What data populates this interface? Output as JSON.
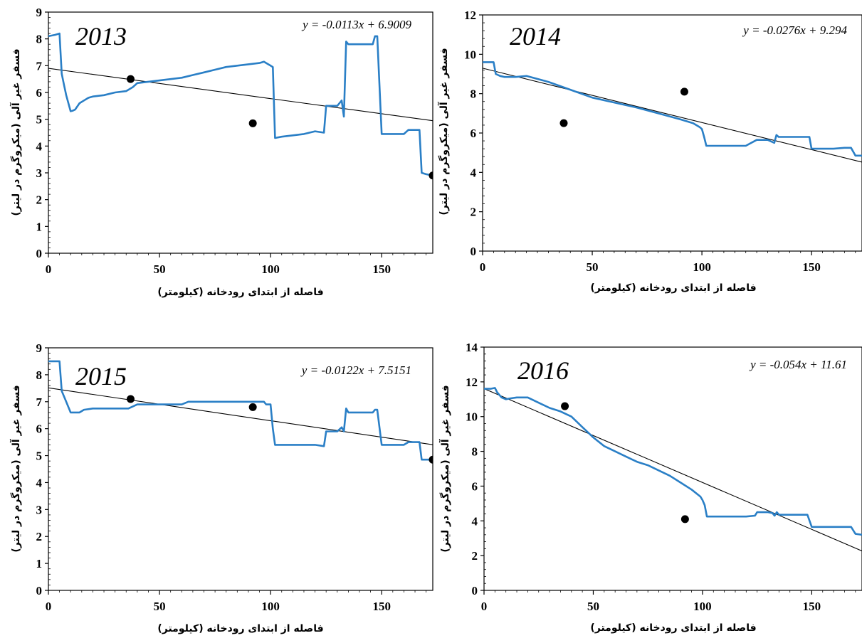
{
  "chart_data": [
    {
      "type": "line",
      "annotation_year": "2013",
      "equation": "y = -0.0113x + 6.9009",
      "xlabel": "فاصله از ابتدای رودخانه (کیلومتر)",
      "ylabel": "فسفر غیر آلی (میکروگرم در لیتر)",
      "xlim": [
        0,
        173
      ],
      "ylim": [
        0,
        9
      ],
      "x_ticks": [
        0,
        50,
        100,
        150
      ],
      "x_tick_labels": [
        "0",
        "50",
        "100",
        "150"
      ],
      "y_ticks": [
        0,
        1,
        2,
        3,
        4,
        5,
        6,
        7,
        8,
        9
      ],
      "y_tick_labels": [
        "0",
        "1",
        "2",
        "3",
        "4",
        "5",
        "6",
        "7",
        "8",
        "9"
      ],
      "colors": {
        "model_line": "#2a7fc6",
        "trend_line": "#000000",
        "observed_points": "#000000"
      },
      "series": [
        {
          "kind": "model_line",
          "x": [
            0,
            3,
            5,
            6,
            7,
            8,
            10,
            11,
            12,
            14,
            16,
            18,
            20,
            25,
            30,
            35,
            38,
            40,
            45,
            50,
            55,
            60,
            65,
            70,
            75,
            80,
            85,
            90,
            95,
            97,
            98,
            100,
            101,
            102,
            105,
            110,
            115,
            120,
            124,
            125,
            130,
            132,
            133,
            134,
            135,
            140,
            146,
            147,
            148,
            150,
            155,
            160,
            162,
            165,
            167,
            168,
            170,
            173
          ],
          "y": [
            8.1,
            8.15,
            8.2,
            6.7,
            6.3,
            5.9,
            5.3,
            5.32,
            5.36,
            5.6,
            5.7,
            5.8,
            5.85,
            5.9,
            6.0,
            6.05,
            6.2,
            6.35,
            6.4,
            6.45,
            6.5,
            6.55,
            6.65,
            6.75,
            6.85,
            6.95,
            7.0,
            7.05,
            7.1,
            7.15,
            7.1,
            7.0,
            6.95,
            4.3,
            4.35,
            4.4,
            4.45,
            4.55,
            4.5,
            5.5,
            5.5,
            5.7,
            5.1,
            7.9,
            7.8,
            7.8,
            7.8,
            8.1,
            8.1,
            4.45,
            4.45,
            4.45,
            4.6,
            4.6,
            4.6,
            3.0,
            2.95,
            2.9
          ]
        },
        {
          "kind": "observed_points",
          "x": [
            37,
            92,
            173
          ],
          "y": [
            6.5,
            4.85,
            2.9
          ]
        },
        {
          "kind": "trend_line",
          "x": [
            0,
            173
          ],
          "y": [
            6.9009,
            4.946
          ]
        }
      ]
    },
    {
      "type": "line",
      "annotation_year": "2014",
      "equation": "y = -0.0276x + 9.294",
      "xlabel": "فاصله از ابتدای رودخانه (کیلومتر)",
      "ylabel": "فسفر غیر آلی (میکروگرم در لیتر)",
      "xlim": [
        0,
        173
      ],
      "ylim": [
        0,
        12
      ],
      "x_ticks": [
        0,
        50,
        100,
        150
      ],
      "x_tick_labels": [
        "0",
        "50",
        "100",
        "150"
      ],
      "y_ticks": [
        0,
        2,
        4,
        6,
        8,
        10,
        12
      ],
      "y_tick_labels": [
        "0",
        "2",
        "4",
        "6",
        "8",
        "10",
        "12"
      ],
      "colors": {
        "model_line": "#2a7fc6",
        "trend_line": "#000000",
        "observed_points": "#000000"
      },
      "series": [
        {
          "kind": "model_line",
          "x": [
            0,
            5,
            6,
            8,
            10,
            15,
            20,
            30,
            40,
            50,
            60,
            70,
            80,
            90,
            96,
            99,
            100,
            101,
            102,
            110,
            120,
            125,
            130,
            133,
            134,
            135,
            140,
            145,
            149,
            150,
            155,
            160,
            165,
            168,
            170,
            173
          ],
          "y": [
            9.6,
            9.6,
            9.0,
            8.9,
            8.85,
            8.85,
            8.9,
            8.6,
            8.2,
            7.8,
            7.55,
            7.3,
            7.0,
            6.7,
            6.5,
            6.3,
            6.2,
            5.8,
            5.35,
            5.35,
            5.35,
            5.65,
            5.65,
            5.5,
            5.9,
            5.8,
            5.8,
            5.8,
            5.8,
            5.2,
            5.2,
            5.2,
            5.25,
            5.25,
            4.85,
            4.85
          ]
        },
        {
          "kind": "observed_points",
          "x": [
            37,
            92
          ],
          "y": [
            6.5,
            8.1
          ]
        },
        {
          "kind": "trend_line",
          "x": [
            0,
            173
          ],
          "y": [
            9.294,
            4.519
          ]
        }
      ]
    },
    {
      "type": "line",
      "annotation_year": "2015",
      "equation": "y = -0.0122x + 7.5151",
      "xlabel": "فاصله از ابتدای رودخانه (کیلومتر)",
      "ylabel": "فسفر غیر آلی (میکروگرم در لیتر)",
      "xlim": [
        0,
        173
      ],
      "ylim": [
        0,
        9
      ],
      "x_ticks": [
        0,
        50,
        100,
        150
      ],
      "x_tick_labels": [
        "0",
        "50",
        "100",
        "150"
      ],
      "y_ticks": [
        0,
        1,
        2,
        3,
        4,
        5,
        6,
        7,
        8,
        9
      ],
      "y_tick_labels": [
        "0",
        "1",
        "2",
        "3",
        "4",
        "5",
        "6",
        "7",
        "8",
        "9"
      ],
      "colors": {
        "model_line": "#2a7fc6",
        "trend_line": "#000000",
        "observed_points": "#000000"
      },
      "series": [
        {
          "kind": "model_line",
          "x": [
            0,
            5,
            6,
            8,
            10,
            14,
            16,
            20,
            30,
            36,
            40,
            50,
            60,
            63,
            70,
            80,
            90,
            97,
            98,
            100,
            101,
            102,
            110,
            120,
            124,
            125,
            130,
            132,
            133,
            134,
            135,
            140,
            146,
            147,
            148,
            150,
            155,
            160,
            162,
            165,
            167,
            168,
            170,
            173
          ],
          "y": [
            8.5,
            8.5,
            7.4,
            7.0,
            6.6,
            6.6,
            6.7,
            6.75,
            6.75,
            6.75,
            6.9,
            6.9,
            6.9,
            7.0,
            7.0,
            7.0,
            7.0,
            7.0,
            6.9,
            6.9,
            6.0,
            5.4,
            5.4,
            5.4,
            5.35,
            5.9,
            5.9,
            6.05,
            5.9,
            6.75,
            6.6,
            6.6,
            6.6,
            6.7,
            6.7,
            5.4,
            5.4,
            5.4,
            5.5,
            5.5,
            5.5,
            4.85,
            4.85,
            4.85
          ]
        },
        {
          "kind": "observed_points",
          "x": [
            37,
            92,
            173
          ],
          "y": [
            7.1,
            6.8,
            4.85
          ]
        },
        {
          "kind": "trend_line",
          "x": [
            0,
            173
          ],
          "y": [
            7.5151,
            5.4045
          ]
        }
      ]
    },
    {
      "type": "line",
      "annotation_year": "2016",
      "equation": "y = -0.054x + 11.61",
      "xlabel": "فاصله از ابتدای رودخانه (کیلومتر)",
      "ylabel": "فسفر غیر آلی (میکروگرم در لیتر)",
      "xlim": [
        0,
        173
      ],
      "ylim": [
        0,
        14
      ],
      "x_ticks": [
        0,
        50,
        100,
        150
      ],
      "x_tick_labels": [
        "0",
        "50",
        "100",
        "150"
      ],
      "y_ticks": [
        0,
        2,
        4,
        6,
        8,
        10,
        12,
        14
      ],
      "y_tick_labels": [
        "0",
        "2",
        "4",
        "6",
        "8",
        "10",
        "12",
        "14"
      ],
      "colors": {
        "model_line": "#2a7fc6",
        "trend_line": "#000000",
        "observed_points": "#000000"
      },
      "series": [
        {
          "kind": "model_line",
          "x": [
            0,
            3,
            5,
            6,
            8,
            10,
            12,
            15,
            20,
            25,
            30,
            35,
            40,
            45,
            50,
            55,
            60,
            65,
            70,
            75,
            80,
            85,
            90,
            95,
            99,
            100,
            101,
            102,
            110,
            120,
            124,
            125,
            130,
            132,
            133,
            134,
            135,
            140,
            146,
            148,
            150,
            155,
            160,
            165,
            168,
            170,
            173
          ],
          "y": [
            11.6,
            11.6,
            11.65,
            11.4,
            11.1,
            11.0,
            11.05,
            11.1,
            11.1,
            10.8,
            10.5,
            10.3,
            10.0,
            9.4,
            8.8,
            8.3,
            8.0,
            7.7,
            7.4,
            7.2,
            6.9,
            6.6,
            6.2,
            5.8,
            5.4,
            5.2,
            4.9,
            4.25,
            4.25,
            4.25,
            4.3,
            4.5,
            4.5,
            4.45,
            4.3,
            4.5,
            4.35,
            4.35,
            4.35,
            4.35,
            3.65,
            3.65,
            3.65,
            3.65,
            3.65,
            3.25,
            3.2
          ]
        },
        {
          "kind": "observed_points",
          "x": [
            37,
            92
          ],
          "y": [
            10.6,
            4.1
          ]
        },
        {
          "kind": "trend_line",
          "x": [
            0,
            173
          ],
          "y": [
            11.61,
            2.268
          ]
        }
      ]
    }
  ]
}
